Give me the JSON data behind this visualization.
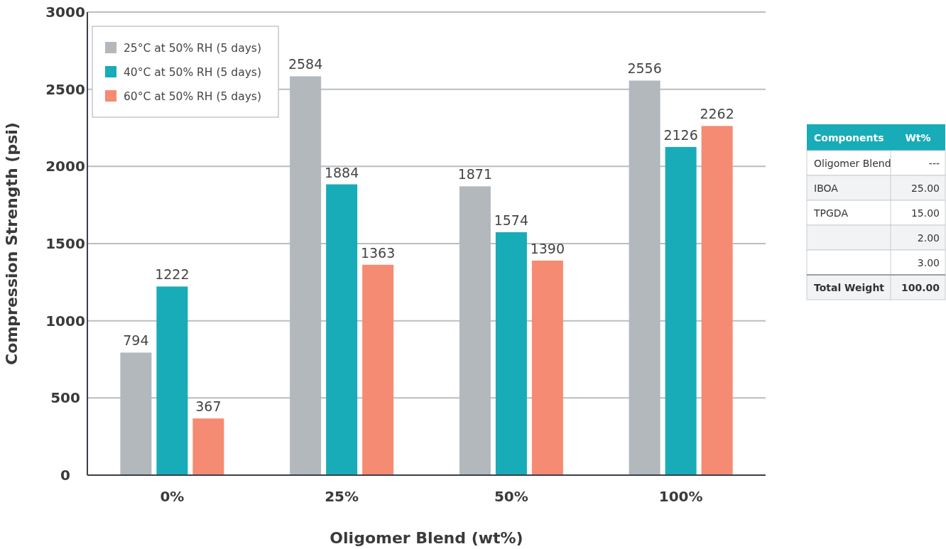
{
  "chart_data": [
    {
      "type": "bar",
      "xlabel": "Oligomer Blend (wt%)",
      "ylabel": "Compression Strength (psi)",
      "categories": [
        "0%",
        "25%",
        "50%",
        "100%"
      ],
      "ylim": [
        0,
        3000
      ],
      "yticks": [
        0,
        500,
        1000,
        1500,
        2000,
        2500,
        3000
      ],
      "grid": "y",
      "legend": "top left",
      "data_labels": true,
      "series": [
        {
          "name": "25°C at 50% RH (5 days)",
          "color": "#b3b8bd",
          "values": [
            794,
            2584,
            1871,
            2556
          ]
        },
        {
          "name": "40°C at 50% RH (5 days)",
          "color": "#17acb8",
          "values": [
            1222,
            1884,
            1574,
            2126
          ]
        },
        {
          "name": "60°C at 50% RH (5 days)",
          "color": "#f58b72",
          "values": [
            367,
            1363,
            1390,
            2262
          ]
        }
      ]
    },
    {
      "type": "other",
      "annotations": [
        "Components",
        "Wt%"
      ],
      "categories": [
        "Oligomer Blend",
        "IBOA",
        "TPGDA",
        null,
        null,
        "Total Weight"
      ],
      "value_labels": [
        "---",
        "25.00",
        "15.00",
        "2.00",
        "3.00",
        "100.00"
      ]
    }
  ]
}
